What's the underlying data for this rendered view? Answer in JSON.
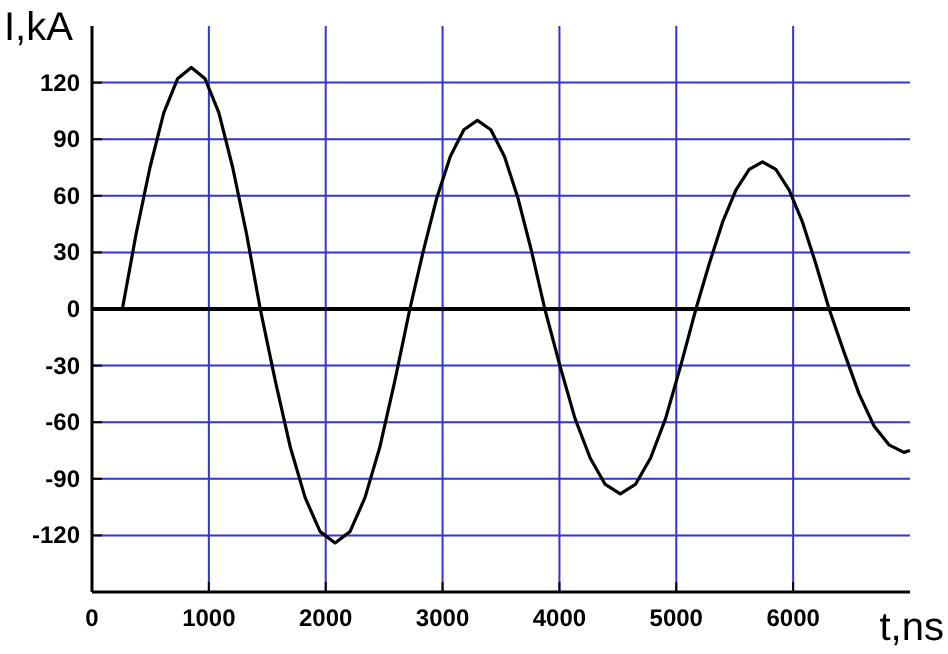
{
  "chart_data": {
    "type": "line",
    "xlabel": "t,ns",
    "ylabel": "I,kA",
    "x": [
      0,
      100,
      200,
      260,
      378,
      496,
      614,
      732,
      850,
      968,
      1086,
      1204,
      1322,
      1440,
      1568,
      1696,
      1824,
      1952,
      2080,
      2208,
      2336,
      2464,
      2592,
      2720,
      2836,
      2951,
      3067,
      3182,
      3298,
      3413,
      3529,
      3644,
      3760,
      3875,
      4004,
      4133,
      4263,
      4392,
      4521,
      4650,
      4780,
      4909,
      5038,
      5168,
      5282,
      5396,
      5510,
      5624,
      5738,
      5852,
      5966,
      6080,
      6194,
      6308,
      6436,
      6564,
      6692,
      6820,
      6948,
      7000
    ],
    "series": [
      {
        "color": "#000000",
        "values": [
          0,
          0,
          0,
          0,
          40,
          75,
          104,
          122,
          128,
          122,
          104,
          75,
          40,
          0,
          -38,
          -73,
          -100,
          -118,
          -124,
          -118,
          -100,
          -73,
          -38,
          0,
          31,
          59,
          81,
          95,
          100,
          95,
          81,
          59,
          31,
          0,
          -30,
          -58,
          -79,
          -93,
          -98,
          -93,
          -79,
          -58,
          -30,
          0,
          24,
          46,
          63,
          74,
          78,
          74,
          63,
          46,
          24,
          0,
          -23,
          -45,
          -62,
          -72,
          -76,
          -75
        ]
      }
    ],
    "xlim": [
      0,
      7000
    ],
    "xticks": [
      0,
      1000,
      2000,
      3000,
      4000,
      5000,
      6000
    ],
    "ylim": [
      -150,
      150
    ],
    "yticks": [
      -120,
      -90,
      -60,
      -30,
      0,
      30,
      60,
      90,
      120
    ],
    "grid": true,
    "marker": "none",
    "line_style": "solid",
    "ref_lines": [
      {
        "axis": "y",
        "value": 0,
        "color": "#000000"
      }
    ]
  }
}
